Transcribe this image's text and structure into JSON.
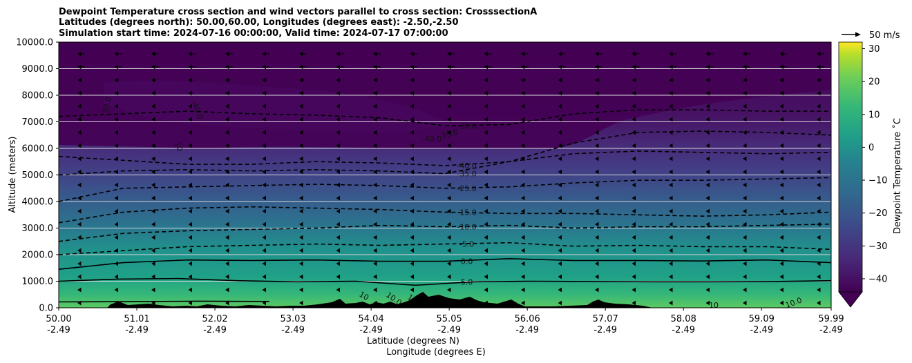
{
  "chart_data": {
    "type": "heatmap",
    "title_lines": [
      "Dewpoint Temperature cross section and wind vectors parallel to cross section: CrosssectionA",
      "Latitudes (degrees north): 50.00,60.00, Longitudes (degrees east): -2.50,-2.50",
      "Simulation start time: 2024-07-16 00:00:00, Valid time: 2024-07-17 07:00:00"
    ],
    "ylabel": "Altitude (meters)",
    "xlabel": "Latitude (degrees N)",
    "xlabel2": "Longitude (degrees E)",
    "ylim": [
      0,
      10000
    ],
    "xlim": [
      50.0,
      59.99
    ],
    "y_ticks": [
      0,
      1000,
      2000,
      3000,
      4000,
      5000,
      6000,
      7000,
      8000,
      9000,
      10000
    ],
    "y_tick_labels": [
      "0.0",
      "1000.0",
      "2000.0",
      "3000.0",
      "4000.0",
      "5000.0",
      "6000.0",
      "7000.0",
      "8000.0",
      "9000.0",
      "10000.0"
    ],
    "x_ticks": [
      50.0,
      51.01,
      52.02,
      53.03,
      54.04,
      55.05,
      56.06,
      57.07,
      58.08,
      59.09,
      59.99
    ],
    "x_tick_labels": [
      "50.00",
      "51.01",
      "52.02",
      "53.03",
      "54.04",
      "55.05",
      "56.06",
      "57.07",
      "58.08",
      "59.09",
      "59.99"
    ],
    "x_tick_labels2": [
      "-2.49",
      "-2.49",
      "-2.49",
      "-2.49",
      "-2.49",
      "-2.49",
      "-2.49",
      "-2.49",
      "-2.49",
      "-2.49",
      "-2.49"
    ],
    "grid": "horizontal",
    "colorbar": {
      "label": "Dewpoint Temperature ˚C",
      "range": [
        -44,
        32
      ],
      "ticks": [
        -40,
        -30,
        -20,
        -10,
        0,
        10,
        20,
        30
      ],
      "tick_labels": [
        "−40",
        "−30",
        "−20",
        "−10",
        "0",
        "10",
        "20",
        "30"
      ],
      "extend": "min",
      "colormap": "viridis"
    },
    "quiver_key": {
      "label": "50 m/s",
      "value": 50
    },
    "contours": [
      {
        "level": 10,
        "label": "10.0",
        "z": [
          220,
          230,
          250,
          240,
          0,
          0,
          0,
          0,
          0,
          0,
          0,
          220
        ]
      },
      {
        "level": 5,
        "label": "5.0",
        "z": [
          1000,
          1080,
          1100,
          1020,
          980,
          1000,
          850,
          980,
          1000,
          990,
          980,
          980,
          990,
          1020
        ]
      },
      {
        "level": 0,
        "label": "0.0",
        "z": [
          1450,
          1700,
          1800,
          1780,
          1800,
          1750,
          1750,
          1850,
          1780,
          1780,
          1760,
          1800,
          1700
        ]
      },
      {
        "level": -5,
        "label": "-5.0",
        "z": [
          2000,
          2150,
          2300,
          2350,
          2400,
          2350,
          2400,
          2450,
          2320,
          2350,
          2300,
          2300,
          2200
        ]
      },
      {
        "level": -10,
        "label": "-10.0",
        "z": [
          2500,
          2800,
          2900,
          2950,
          3000,
          3100,
          3050,
          3100,
          3000,
          3050,
          3050,
          3100,
          3150
        ]
      },
      {
        "level": -15,
        "label": "-15.0",
        "z": [
          3200,
          3600,
          3750,
          3800,
          3750,
          3700,
          3600,
          3550,
          3550,
          3500,
          3450,
          3500,
          3600
        ]
      },
      {
        "level": -25,
        "label": "-25.0",
        "z": [
          4000,
          4500,
          4550,
          4600,
          4650,
          4600,
          4500,
          4550,
          4700,
          4800,
          4800,
          4850,
          4900
        ]
      },
      {
        "level": -35,
        "label": "-35.0",
        "z": [
          5000,
          5150,
          5200,
          5150,
          5200,
          5150,
          5050,
          5500,
          5800,
          5900,
          5850,
          5800,
          5850
        ]
      },
      {
        "level": -40,
        "label": "-40.0",
        "z": [
          5700,
          5550,
          5400,
          5400,
          5500,
          5450,
          5350,
          5500,
          6200,
          6600,
          6650,
          6600,
          6500
        ]
      },
      {
        "level": -30,
        "label": "-30.0",
        "z": [
          7200,
          7300,
          7400,
          7300,
          7250,
          7150,
          6850,
          6900,
          7300,
          7450,
          7450,
          7400,
          7400
        ]
      }
    ],
    "contour_labels_extra": [
      "-40.0",
      "-35.0",
      "-30.0",
      "-40.0",
      "10",
      "10",
      "10",
      "10",
      "10.0",
      "10.0"
    ]
  }
}
